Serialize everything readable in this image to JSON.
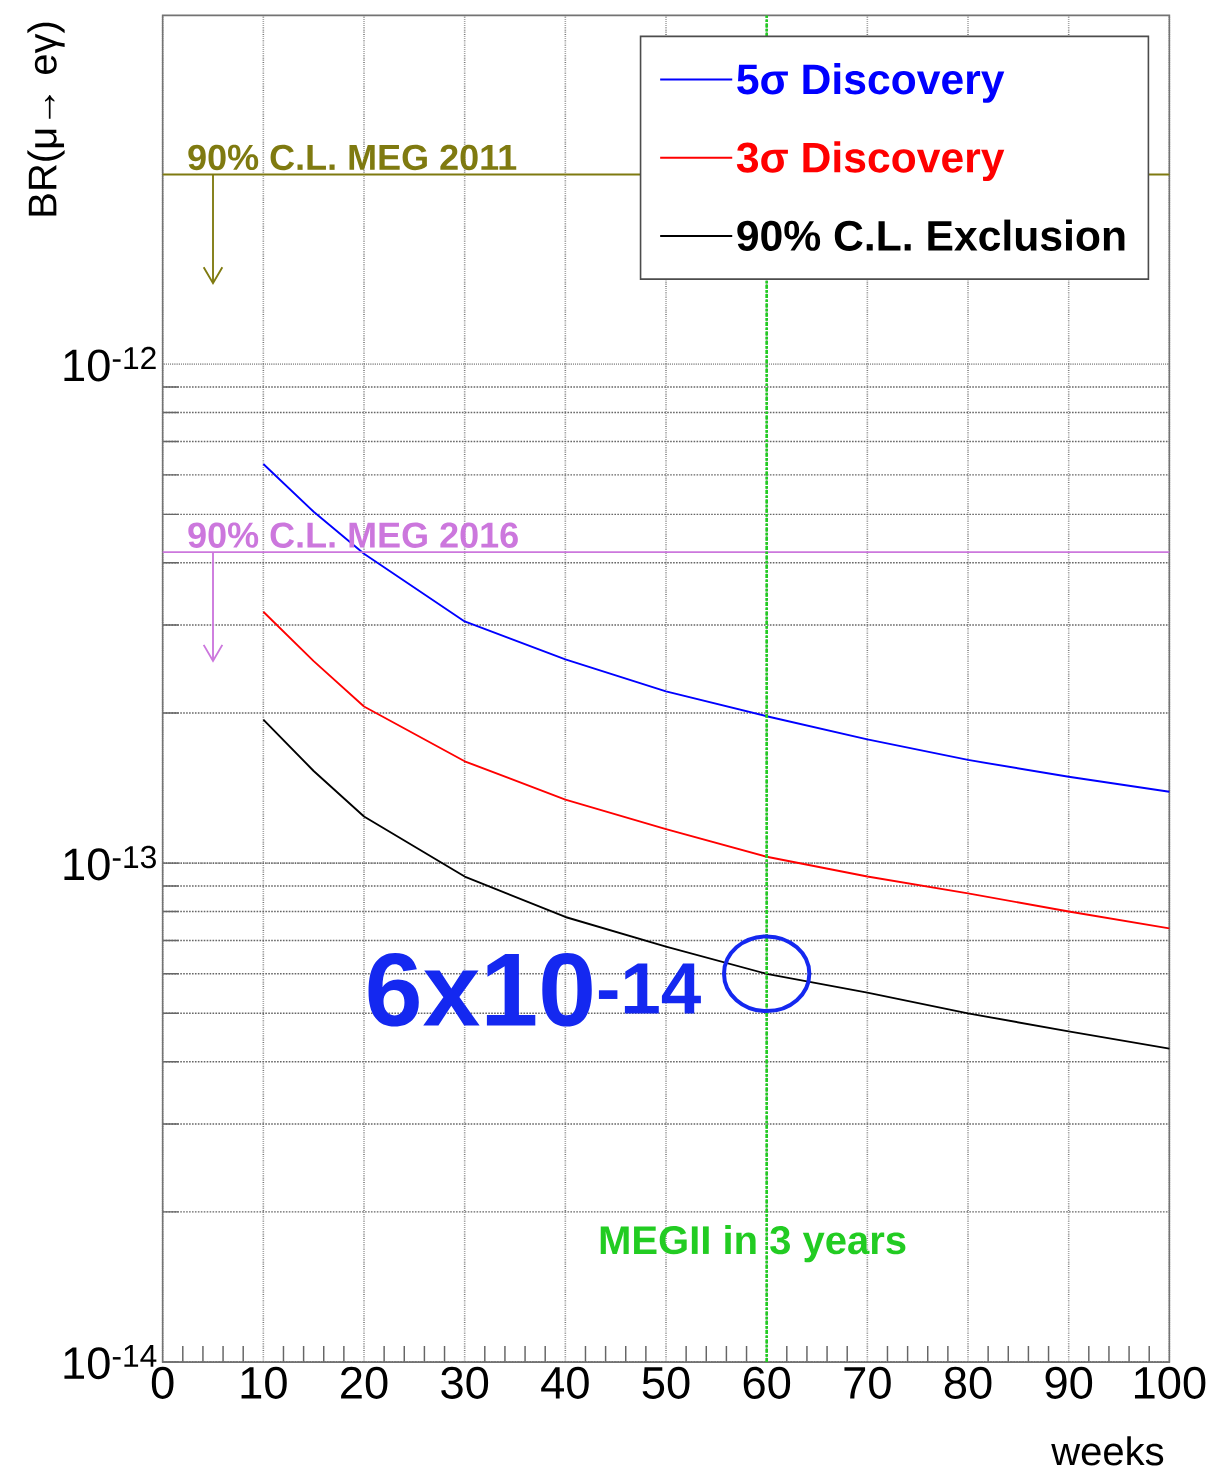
{
  "chart_data": {
    "type": "line",
    "xlabel": "weeks",
    "ylabel": "BR(μ→ eγ)",
    "x": [
      10,
      15,
      20,
      30,
      40,
      50,
      60,
      70,
      80,
      90,
      100
    ],
    "series": [
      {
        "name": "5σ Discovery",
        "color": "#0000ff",
        "values": [
          6.31e-13,
          5.06e-13,
          4.17e-13,
          3.05e-13,
          2.56e-13,
          2.21e-13,
          1.97e-13,
          1.77e-13,
          1.61e-13,
          1.49e-13,
          1.39e-13
        ]
      },
      {
        "name": "3σ Discovery",
        "color": "#ff0000",
        "values": [
          3.19e-13,
          2.54e-13,
          2.06e-13,
          1.6e-13,
          1.34e-13,
          1.17e-13,
          1.03e-13,
          9.4e-14,
          8.7e-14,
          8e-14,
          7.4e-14
        ]
      },
      {
        "name": "90% C.L. Exclusion",
        "color": "#000000",
        "values": [
          1.94e-13,
          1.53e-13,
          1.24e-13,
          9.4e-14,
          7.8e-14,
          6.8e-14,
          6e-14,
          5.5e-14,
          5e-14,
          4.6e-14,
          4.25e-14
        ]
      }
    ],
    "log": "y",
    "xlim": [
      0,
      100
    ],
    "ylim": [
      1e-14,
      5e-12
    ],
    "xticks": [
      0,
      10,
      20,
      30,
      40,
      50,
      60,
      70,
      80,
      90,
      100
    ],
    "yticks": [
      {
        "value": 1e-14,
        "label": "10$^{-14}$"
      },
      {
        "value": 1e-13,
        "label": "10$^{-13}$"
      },
      {
        "value": 1e-12,
        "label": "10$^{-12}$"
      }
    ],
    "grid": true,
    "legend": "top right",
    "marker": "none",
    "line_style": "solid",
    "ref_lines": [
      {
        "axis": "y",
        "value": 2.4e-12,
        "label": "90% C.L.  MEG 2011",
        "color": "#7f7a10"
      },
      {
        "axis": "y",
        "value": 4.2e-13,
        "label": "90% C.L.  MEG 2016",
        "color": "#cc77dd"
      },
      {
        "axis": "x",
        "value": 60,
        "label": "MEGII in 3 years",
        "color": "#22cc22",
        "line_style": "dashed"
      }
    ],
    "annotations": [
      "6x10$^{-14}$"
    ]
  }
}
